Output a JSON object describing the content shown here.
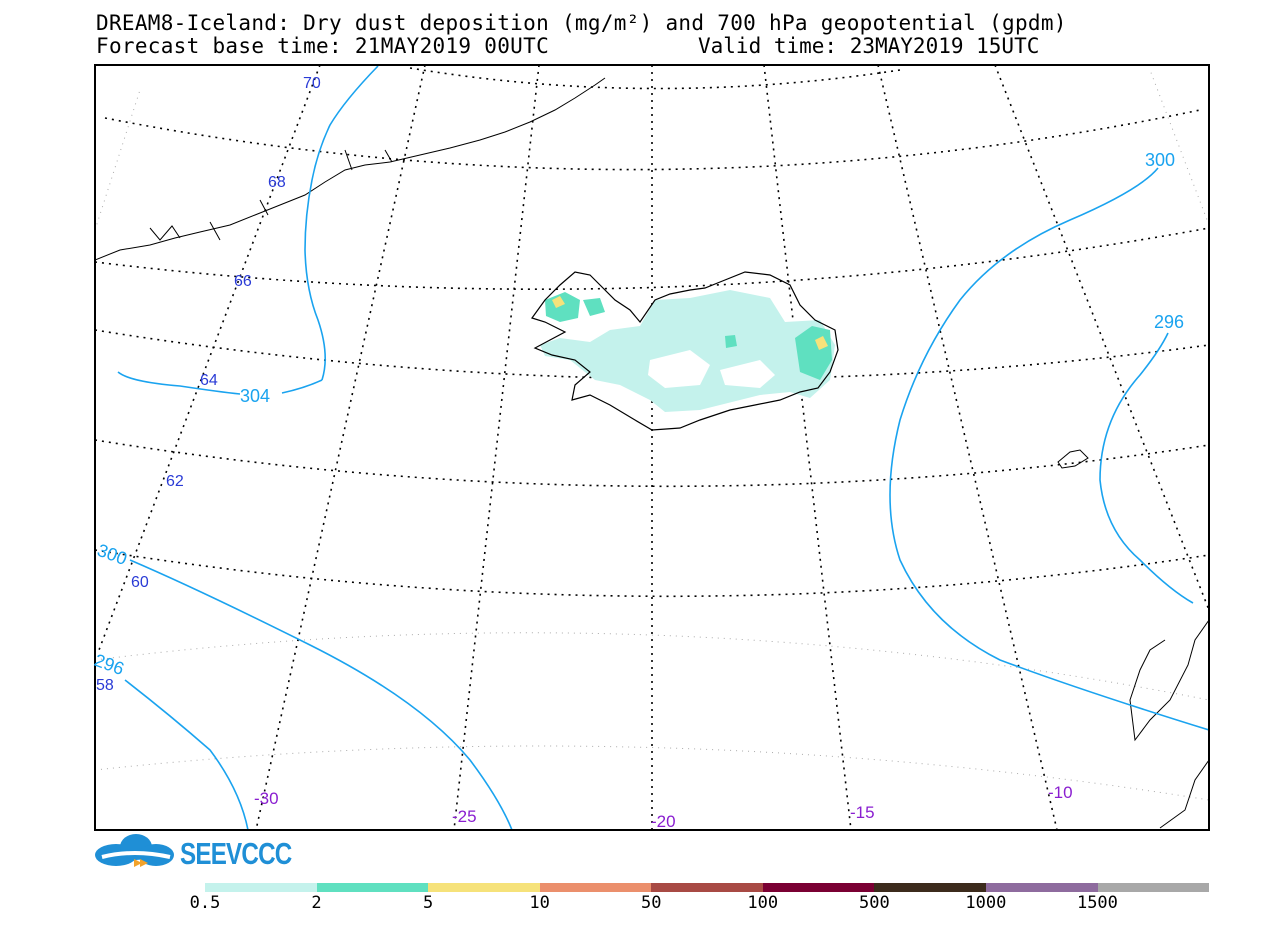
{
  "header": {
    "title_line1": "DREAM8-Iceland: Dry dust deposition (mg/m²) and 700 hPa geopotential (gpdm)",
    "title_line2": "Forecast base time: 21MAY2019 00UTC",
    "valid_time": "Valid time: 23MAY2019 15UTC"
  },
  "map": {
    "latitude_labels": [
      "70",
      "68",
      "66",
      "64",
      "62",
      "60",
      "58"
    ],
    "longitude_labels": [
      "-30",
      "-25",
      "-20",
      "-15",
      "-10"
    ],
    "contour_labels": [
      "300",
      "296",
      "304",
      "300",
      "296"
    ],
    "colors": {
      "latitude_label": "#2a3bd6",
      "longitude_label": "#8a1ed0",
      "contour": "#1aa3ef",
      "coastline": "#000000"
    }
  },
  "logo": {
    "text": "SEEVCCC"
  },
  "legend": {
    "labels": [
      "0.5",
      "2",
      "5",
      "10",
      "50",
      "100",
      "500",
      "1000",
      "1500"
    ],
    "colors": [
      "#c4f2ec",
      "#5fe0c0",
      "#f6e27a",
      "#eb8f6c",
      "#a84a44",
      "#7a0033",
      "#3c2b1c",
      "#8e6b9e",
      "#a8a8a8"
    ]
  }
}
